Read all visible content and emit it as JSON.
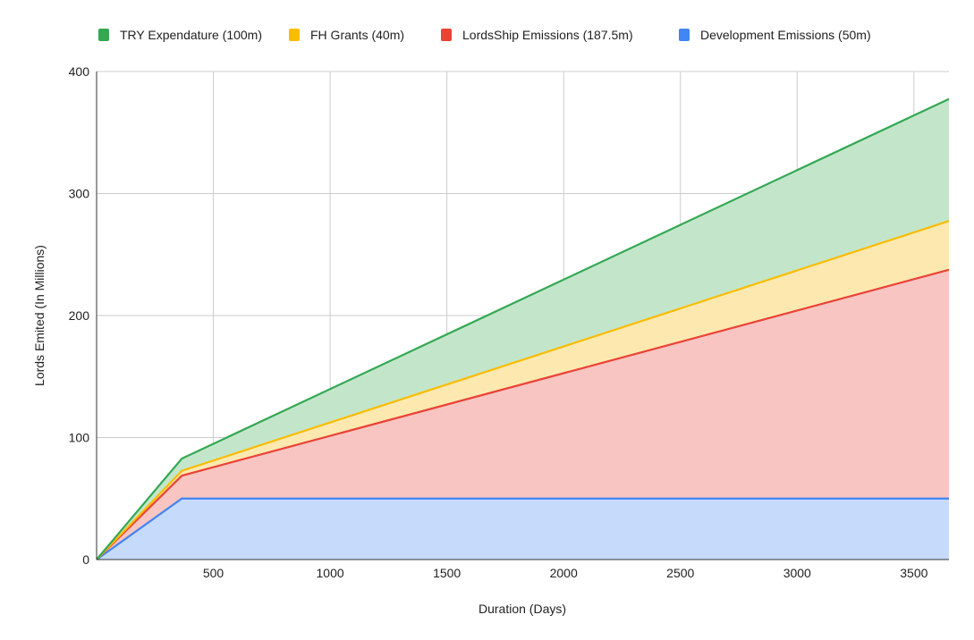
{
  "chart_data": {
    "type": "area",
    "stacked": true,
    "title": "",
    "xlabel": "Duration (Days)",
    "ylabel": "Lords Emited (In Millions)",
    "xlim": [
      0,
      3650
    ],
    "ylim": [
      0,
      400
    ],
    "xticks": [
      500,
      1000,
      1500,
      2000,
      2500,
      3000,
      3500
    ],
    "yticks": [
      0,
      100,
      200,
      300,
      400
    ],
    "grid": true,
    "legend": "top",
    "x": [
      0,
      365,
      3650
    ],
    "series": [
      {
        "name": "Development Emissions (50m)",
        "values": [
          0,
          50,
          50
        ],
        "color": "#4285f4",
        "fill": "#c6dafc"
      },
      {
        "name": "LordsShip Emissions (187.5m)",
        "values": [
          0,
          18.75,
          187.5
        ],
        "color": "#ea4335",
        "fill": "#f8c5c2"
      },
      {
        "name": "FH Grants (40m)",
        "values": [
          0,
          4,
          40
        ],
        "color": "#fbbc04",
        "fill": "#fde9b0"
      },
      {
        "name": "TRY Expendature (100m)",
        "values": [
          0,
          10,
          100
        ],
        "color": "#34a853",
        "fill": "#c3e6cb"
      }
    ],
    "legend_order": [
      "TRY Expendature (100m)",
      "FH Grants (40m)",
      "LordsShip Emissions (187.5m)",
      "Development Emissions (50m)"
    ]
  }
}
